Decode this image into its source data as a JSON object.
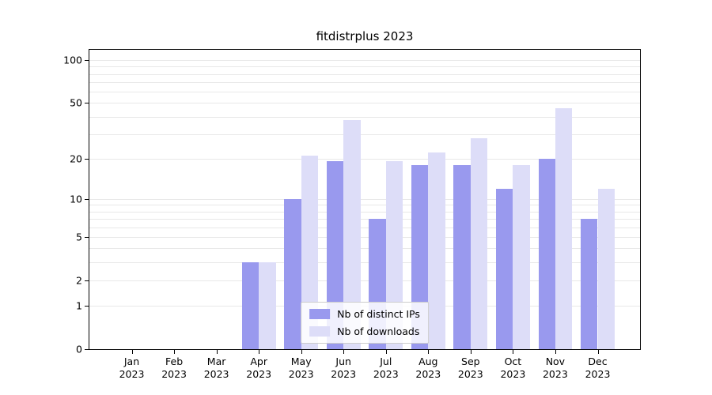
{
  "chart_data": {
    "type": "bar",
    "title": "fitdistrplus 2023",
    "categories": [
      {
        "month": "Jan",
        "year": "2023"
      },
      {
        "month": "Feb",
        "year": "2023"
      },
      {
        "month": "Mar",
        "year": "2023"
      },
      {
        "month": "Apr",
        "year": "2023"
      },
      {
        "month": "May",
        "year": "2023"
      },
      {
        "month": "Jun",
        "year": "2023"
      },
      {
        "month": "Jul",
        "year": "2023"
      },
      {
        "month": "Aug",
        "year": "2023"
      },
      {
        "month": "Sep",
        "year": "2023"
      },
      {
        "month": "Oct",
        "year": "2023"
      },
      {
        "month": "Nov",
        "year": "2023"
      },
      {
        "month": "Dec",
        "year": "2023"
      }
    ],
    "series": [
      {
        "name": "Nb of distinct IPs",
        "color": "#9999ee",
        "values": [
          0,
          0,
          0,
          3,
          10,
          19,
          7,
          18,
          18,
          12,
          20,
          7
        ]
      },
      {
        "name": "Nb of downloads",
        "color": "#ddddf8",
        "values": [
          0,
          0,
          0,
          3,
          21,
          38,
          19,
          22,
          28,
          18,
          46,
          12
        ]
      }
    ],
    "yscale": "log1p",
    "yticks": [
      0,
      1,
      2,
      5,
      10,
      20,
      50,
      100
    ],
    "minor_gridlines": [
      1,
      2,
      3,
      4,
      5,
      6,
      7,
      8,
      9,
      10,
      20,
      30,
      40,
      50,
      60,
      70,
      80,
      90,
      100
    ],
    "grid_color": "#e8e8e8",
    "grid": "horizontal-minor",
    "legend_position": "lower center",
    "xlabel": "",
    "ylabel": ""
  }
}
